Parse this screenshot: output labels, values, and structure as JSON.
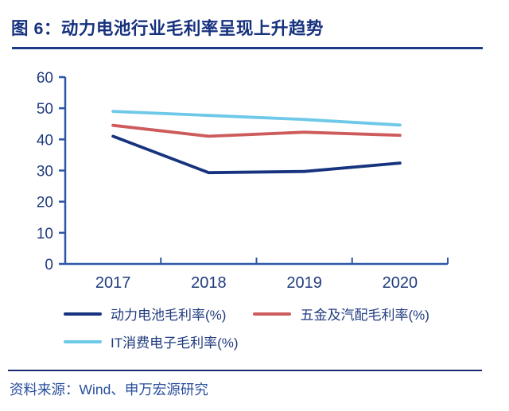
{
  "figure": {
    "title": "图 6：动力电池行业毛利率呈现上升趋势",
    "source": "资料来源：Wind、申万宏源研究"
  },
  "colors": {
    "title": "#16317E",
    "title_underline": "#1C3A86",
    "axis": "#2E57A6",
    "tick_label": "#203B7E",
    "legend_text": "#203B7E",
    "footer_text": "#2A4F9E",
    "divider": "#1A2970",
    "series_battery": "#17337F",
    "series_hardware": "#CE5B5B",
    "series_it": "#6EC8E8"
  },
  "chart_data": {
    "type": "line",
    "title": "动力电池行业毛利率呈现上升趋势",
    "categories": [
      "2017",
      "2018",
      "2019",
      "2020"
    ],
    "series": [
      {
        "name": "动力电池毛利率(%)",
        "color_key": "series_battery",
        "values": [
          41.0,
          29.3,
          29.7,
          32.4
        ]
      },
      {
        "name": "五金及汽配毛利率(%)",
        "color_key": "series_hardware",
        "values": [
          44.5,
          41.0,
          42.3,
          41.3
        ]
      },
      {
        "name": "IT消费电子毛利率(%)",
        "color_key": "series_it",
        "values": [
          49.0,
          47.7,
          46.4,
          44.6
        ]
      }
    ],
    "xlabel": "",
    "ylabel": "",
    "ylim": [
      0,
      60
    ],
    "yticks": [
      0,
      10,
      20,
      30,
      40,
      50,
      60
    ],
    "grid": false,
    "legend_position": "bottom-left"
  }
}
